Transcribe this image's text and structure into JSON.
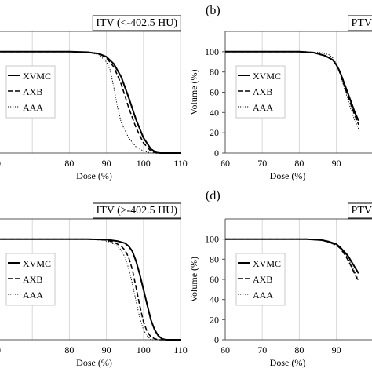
{
  "figure": {
    "background": "#ffffff",
    "ink": "#000000",
    "grid_color": "#d9d9d9"
  },
  "chart_data": [
    {
      "type": "line",
      "panel_label": "",
      "title": "ITV (<-402.5 HU)",
      "xlabel": "Dose (%)",
      "ylabel": "",
      "xlim": [
        60,
        110
      ],
      "ylim": [
        0,
        120
      ],
      "xticks": [
        "60",
        "70",
        "80",
        "90",
        "100",
        "110"
      ],
      "x_tick_labels_visible": [
        "0",
        "80",
        "90",
        "100",
        "110"
      ],
      "yticks": [],
      "grid": "vertical",
      "legend": "left",
      "series": [
        {
          "name": "XVMC",
          "style": "solid",
          "x": [
            60,
            80,
            85,
            88,
            90,
            92,
            94,
            96,
            98,
            100,
            102,
            103.5,
            104.5,
            110
          ],
          "y": [
            100,
            100,
            99.5,
            98,
            95,
            88,
            75,
            55,
            33,
            15,
            4,
            0.5,
            0,
            0
          ]
        },
        {
          "name": "AXB",
          "style": "dashed",
          "x": [
            60,
            80,
            85,
            88,
            90,
            92,
            94,
            96,
            98,
            100,
            102,
            103.5,
            110
          ],
          "y": [
            100,
            100,
            99.5,
            98,
            94,
            85,
            68,
            45,
            25,
            10,
            2,
            0,
            0
          ]
        },
        {
          "name": "AAA",
          "style": "dotted",
          "x": [
            60,
            80,
            85,
            88,
            90,
            91,
            92,
            93,
            94,
            96,
            98,
            100,
            102,
            110
          ],
          "y": [
            100,
            100,
            99.5,
            97,
            90,
            82,
            65,
            45,
            30,
            15,
            6,
            2,
            0,
            0
          ]
        }
      ]
    },
    {
      "type": "line",
      "panel_label": "(b)",
      "title": "PTV",
      "xlabel": "Dose (%)",
      "ylabel": "Volume (%)",
      "xlim": [
        60,
        110
      ],
      "ylim": [
        0,
        120
      ],
      "xticks": [
        "60",
        "70",
        "80",
        "90",
        "100",
        "110"
      ],
      "x_tick_labels_visible": [
        "60",
        "70",
        "80",
        "90"
      ],
      "yticks": [
        "0",
        "20",
        "40",
        "60",
        "80",
        "100"
      ],
      "grid": "vertical",
      "legend": "left",
      "series": [
        {
          "name": "XVMC",
          "style": "solid",
          "x": [
            60,
            80,
            84,
            87,
            89,
            90,
            91,
            92,
            93,
            94,
            95,
            96
          ],
          "y": [
            100,
            100,
            99,
            96,
            92,
            87,
            80,
            70,
            60,
            50,
            40,
            32
          ]
        },
        {
          "name": "AXB",
          "style": "dashed",
          "x": [
            60,
            80,
            84,
            87,
            89,
            90,
            91,
            92,
            93,
            94,
            95,
            96
          ],
          "y": [
            100,
            100,
            99,
            96,
            92,
            87,
            79,
            68,
            57,
            47,
            37,
            28
          ]
        },
        {
          "name": "AAA",
          "style": "dotted",
          "x": [
            60,
            82,
            86,
            88,
            89,
            90,
            91,
            92,
            93,
            94,
            95,
            96
          ],
          "y": [
            100,
            100,
            99,
            97,
            94,
            88,
            78,
            66,
            54,
            42,
            32,
            24
          ]
        }
      ]
    },
    {
      "type": "line",
      "panel_label": "",
      "title": "ITV (≥-402.5 HU)",
      "xlabel": "Dose (%)",
      "ylabel": "",
      "xlim": [
        60,
        110
      ],
      "ylim": [
        0,
        120
      ],
      "xticks": [
        "60",
        "70",
        "80",
        "90",
        "100",
        "110"
      ],
      "x_tick_labels_visible": [
        "0",
        "80",
        "90",
        "100",
        "110"
      ],
      "yticks": [],
      "grid": "vertical",
      "legend": "left",
      "series": [
        {
          "name": "XVMC",
          "style": "solid",
          "x": [
            60,
            85,
            90,
            93,
            95,
            96,
            97,
            98,
            99,
            100,
            101,
            102,
            103,
            104,
            105,
            106,
            110
          ],
          "y": [
            100,
            100,
            99.5,
            98,
            96,
            93,
            88,
            78,
            65,
            50,
            35,
            20,
            10,
            4,
            1,
            0,
            0
          ]
        },
        {
          "name": "AXB",
          "style": "dashed",
          "x": [
            60,
            85,
            90,
            92,
            94,
            95,
            96,
            97,
            98,
            99,
            100,
            101,
            102,
            103,
            104,
            110
          ],
          "y": [
            100,
            100,
            99,
            97,
            93,
            89,
            82,
            70,
            52,
            34,
            18,
            8,
            3,
            1,
            0,
            0
          ]
        },
        {
          "name": "AAA",
          "style": "dotted",
          "x": [
            60,
            85,
            89,
            91,
            93,
            94,
            95,
            96,
            97,
            98,
            99,
            100,
            101,
            102,
            110
          ],
          "y": [
            100,
            100,
            99,
            97,
            93,
            89,
            82,
            71,
            56,
            38,
            22,
            10,
            4,
            0,
            0
          ]
        }
      ]
    },
    {
      "type": "line",
      "panel_label": "(d)",
      "title": "PTV",
      "xlabel": "Dose (%)",
      "ylabel": "Volume (%)",
      "xlim": [
        60,
        110
      ],
      "ylim": [
        0,
        120
      ],
      "xticks": [
        "60",
        "70",
        "80",
        "90",
        "100",
        "110"
      ],
      "x_tick_labels_visible": [
        "60",
        "70",
        "80",
        "90"
      ],
      "yticks": [
        "0",
        "20",
        "40",
        "60",
        "80",
        "100"
      ],
      "grid": "vertical",
      "legend": "left",
      "series": [
        {
          "name": "XVMC",
          "style": "solid",
          "x": [
            60,
            82,
            86,
            88,
            90,
            91,
            92,
            93,
            94,
            95,
            96
          ],
          "y": [
            100,
            100,
            99,
            97.5,
            95,
            92,
            88,
            84,
            78,
            72,
            66
          ]
        },
        {
          "name": "AXB",
          "style": "dashed",
          "x": [
            60,
            82,
            86,
            88,
            90,
            91,
            92,
            93,
            94,
            95,
            96
          ],
          "y": [
            100,
            100,
            99,
            97,
            94,
            91,
            86,
            80,
            73,
            65,
            58
          ]
        },
        {
          "name": "AAA",
          "style": "dotted",
          "x": [
            60,
            82,
            86,
            88,
            90,
            91,
            92,
            93,
            94,
            95,
            96
          ],
          "y": [
            100,
            100,
            99,
            97.5,
            95,
            92,
            87,
            82,
            75,
            67,
            59
          ]
        }
      ]
    }
  ]
}
